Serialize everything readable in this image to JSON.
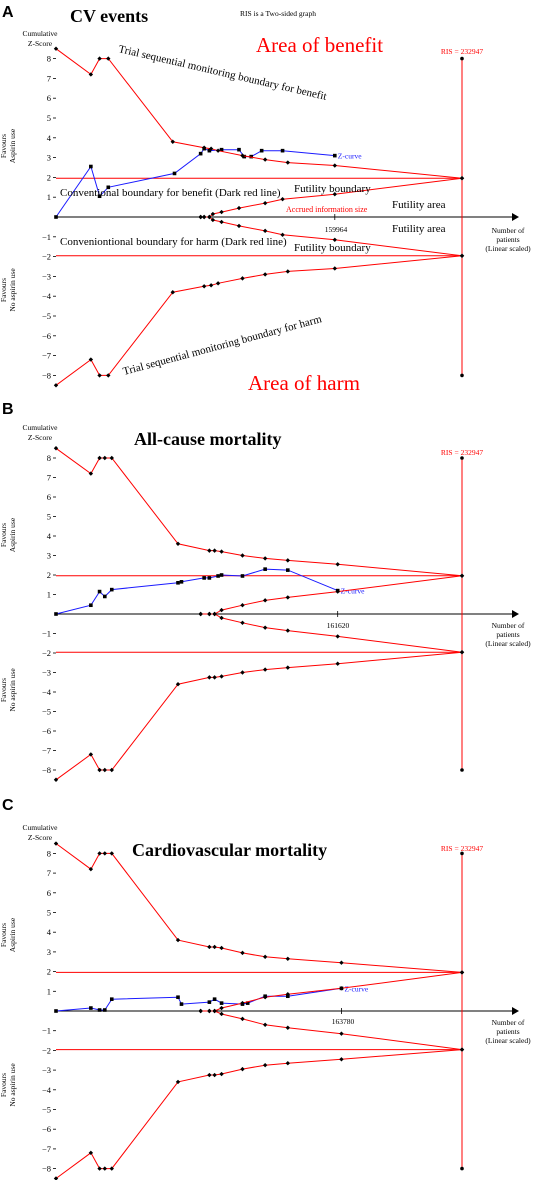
{
  "colors": {
    "boundary": "#ff0000",
    "zcurve": "#1a1aff",
    "axis": "#000000"
  },
  "panels": [
    {
      "letter": "A",
      "title": "CV events",
      "note": "RIS is a Two-sided graph",
      "y_title": [
        "Cumulative",
        "Z-Score"
      ],
      "favours_top": [
        "Favours",
        "Aspirin use"
      ],
      "favours_bottom": [
        "Favours",
        "No aspirin use"
      ],
      "x_title": [
        "Number of",
        "patients",
        "(Linear scaled)"
      ],
      "ris_label": "RIS = 232947",
      "x_tick": "159964",
      "zcurve_label": "Z-curve",
      "annotations": {
        "area_benefit": "Area of benefit",
        "area_harm": "Area of harm",
        "tsm_benefit": "Trial sequential monitoring boundary for benefit",
        "tsm_harm": "Trial sequential monitoring boundary for harm",
        "conv_benefit": "Conventional boundary for benefit (Dark red line)",
        "conv_harm": "Conveniontional boundary for harm (Dark red line)",
        "futility_boundary_top": "Futility boundary",
        "futility_boundary_bottom": "Futility boundary",
        "futility_area_top": "Futility area",
        "futility_area_bottom": "Futility area",
        "accrued": "Accrued information size"
      }
    },
    {
      "letter": "B",
      "title": "All-cause mortality",
      "y_title": [
        "Cumulative",
        "Z-Score"
      ],
      "favours_top": [
        "Favours",
        "Aspirin use"
      ],
      "favours_bottom": [
        "Favours",
        "No aspirin use"
      ],
      "x_title": [
        "Number of",
        "patients",
        "(Linear scaled)"
      ],
      "ris_label": "RIS = 232947",
      "x_tick": "161620",
      "zcurve_label": "Z-curve"
    },
    {
      "letter": "C",
      "title": "Cardiovascular mortality",
      "y_title": [
        "Cumulative",
        "Z-Score"
      ],
      "favours_top": [
        "Favours",
        "Aspirin use"
      ],
      "favours_bottom": [
        "Favours",
        "No aspirin use"
      ],
      "x_title": [
        "Number of",
        "patients",
        "(Linear scaled)"
      ],
      "ris_label": "RIS = 232947",
      "x_tick": "163780",
      "zcurve_label": "Z-curve"
    }
  ],
  "chart_data": [
    {
      "type": "line",
      "title": "CV events",
      "xlabel": "Number of patients (Linear scaled)",
      "ylabel": "Cumulative Z-Score",
      "ylim": [
        -8.5,
        8.5
      ],
      "xlim": [
        0,
        248000
      ],
      "yticks": [
        8,
        7,
        6,
        5,
        4,
        3,
        2,
        1,
        -1,
        -2,
        -3,
        -4,
        -5,
        -6,
        -7,
        -8
      ],
      "ris": 232947,
      "accrued": 159964,
      "series": [
        {
          "name": "Z-curve",
          "points": [
            [
              0,
              0
            ],
            [
              20000,
              2.55
            ],
            [
              25000,
              1.05
            ],
            [
              30000,
              1.5
            ],
            [
              68000,
              2.2
            ],
            [
              83000,
              3.2
            ],
            [
              85000,
              3.45
            ],
            [
              88000,
              3.35
            ],
            [
              95000,
              3.4
            ],
            [
              105000,
              3.4
            ],
            [
              108000,
              3.05
            ],
            [
              112000,
              3.05
            ],
            [
              118000,
              3.35
            ],
            [
              130000,
              3.35
            ],
            [
              159964,
              3.1
            ]
          ]
        },
        {
          "name": "Trial sequential monitoring boundary for benefit",
          "points": [
            [
              0,
              8.5
            ],
            [
              20000,
              7.2
            ],
            [
              25000,
              8.0
            ],
            [
              30000,
              8.0
            ],
            [
              67000,
              3.8
            ],
            [
              85000,
              3.5
            ],
            [
              89000,
              3.45
            ],
            [
              93000,
              3.35
            ],
            [
              107000,
              3.1
            ],
            [
              120000,
              2.9
            ],
            [
              133000,
              2.75
            ],
            [
              159964,
              2.6
            ],
            [
              232947,
              1.96
            ]
          ]
        },
        {
          "name": "Trial sequential monitoring boundary for harm",
          "points": [
            [
              0,
              -8.5
            ],
            [
              20000,
              -7.2
            ],
            [
              25000,
              -8.0
            ],
            [
              30000,
              -8.0
            ],
            [
              67000,
              -3.8
            ],
            [
              85000,
              -3.5
            ],
            [
              89000,
              -3.45
            ],
            [
              93000,
              -3.35
            ],
            [
              107000,
              -3.1
            ],
            [
              120000,
              -2.9
            ],
            [
              133000,
              -2.75
            ],
            [
              159964,
              -2.6
            ],
            [
              232947,
              -1.96
            ]
          ]
        },
        {
          "name": "Futility boundary",
          "points": [
            [
              83000,
              0
            ],
            [
              85000,
              0
            ],
            [
              88000,
              0
            ],
            [
              90000,
              0.15
            ],
            [
              95000,
              0.25
            ],
            [
              105000,
              0.45
            ],
            [
              120000,
              0.7
            ],
            [
              130000,
              0.9
            ],
            [
              159964,
              1.15
            ],
            [
              232947,
              1.96
            ]
          ]
        },
        {
          "name": "Futility boundary",
          "points": [
            [
              83000,
              0
            ],
            [
              85000,
              0
            ],
            [
              88000,
              0
            ],
            [
              90000,
              -0.15
            ],
            [
              95000,
              -0.25
            ],
            [
              105000,
              -0.45
            ],
            [
              120000,
              -0.7
            ],
            [
              130000,
              -0.9
            ],
            [
              159964,
              -1.15
            ],
            [
              232947,
              -1.96
            ]
          ]
        }
      ],
      "conventional_boundaries": [
        1.96,
        -1.96
      ]
    },
    {
      "type": "line",
      "title": "All-cause mortality",
      "xlabel": "Number of patients (Linear scaled)",
      "ylabel": "Cumulative Z-Score",
      "ylim": [
        -8.5,
        8.5
      ],
      "xlim": [
        0,
        248000
      ],
      "yticks": [
        8,
        7,
        6,
        5,
        4,
        3,
        2,
        1,
        -1,
        -2,
        -3,
        -4,
        -5,
        -6,
        -7,
        -8
      ],
      "ris": 232947,
      "accrued": 161620,
      "series": [
        {
          "name": "Z-curve",
          "points": [
            [
              0,
              0
            ],
            [
              20000,
              0.45
            ],
            [
              25000,
              1.15
            ],
            [
              28000,
              0.9
            ],
            [
              32000,
              1.25
            ],
            [
              70000,
              1.6
            ],
            [
              72000,
              1.65
            ],
            [
              85000,
              1.85
            ],
            [
              88000,
              1.85
            ],
            [
              93000,
              1.95
            ],
            [
              95000,
              2.0
            ],
            [
              107000,
              1.95
            ],
            [
              120000,
              2.3
            ],
            [
              133000,
              2.25
            ],
            [
              161620,
              1.2
            ]
          ]
        },
        {
          "name": "Trial sequential monitoring boundary for benefit",
          "points": [
            [
              0,
              8.5
            ],
            [
              20000,
              7.2
            ],
            [
              25000,
              8.0
            ],
            [
              28000,
              8.0
            ],
            [
              32000,
              8.0
            ],
            [
              70000,
              3.6
            ],
            [
              88000,
              3.25
            ],
            [
              91000,
              3.25
            ],
            [
              95000,
              3.2
            ],
            [
              107000,
              3.0
            ],
            [
              120000,
              2.85
            ],
            [
              133000,
              2.75
            ],
            [
              161620,
              2.55
            ],
            [
              232947,
              1.96
            ]
          ]
        },
        {
          "name": "Trial sequential monitoring boundary for harm",
          "points": [
            [
              0,
              -8.5
            ],
            [
              20000,
              -7.2
            ],
            [
              25000,
              -8.0
            ],
            [
              28000,
              -8.0
            ],
            [
              32000,
              -8.0
            ],
            [
              70000,
              -3.6
            ],
            [
              88000,
              -3.25
            ],
            [
              91000,
              -3.25
            ],
            [
              95000,
              -3.2
            ],
            [
              107000,
              -3.0
            ],
            [
              120000,
              -2.85
            ],
            [
              133000,
              -2.75
            ],
            [
              161620,
              -2.55
            ],
            [
              232947,
              -1.96
            ]
          ]
        },
        {
          "name": "Futility boundary",
          "points": [
            [
              83000,
              0
            ],
            [
              88000,
              0
            ],
            [
              91000,
              0
            ],
            [
              95000,
              0.2
            ],
            [
              107000,
              0.45
            ],
            [
              120000,
              0.7
            ],
            [
              133000,
              0.85
            ],
            [
              161620,
              1.15
            ],
            [
              232947,
              1.96
            ]
          ]
        },
        {
          "name": "Futility boundary",
          "points": [
            [
              83000,
              0
            ],
            [
              88000,
              0
            ],
            [
              91000,
              0
            ],
            [
              95000,
              -0.2
            ],
            [
              107000,
              -0.45
            ],
            [
              120000,
              -0.7
            ],
            [
              133000,
              -0.85
            ],
            [
              161620,
              -1.15
            ],
            [
              232947,
              -1.96
            ]
          ]
        }
      ],
      "conventional_boundaries": [
        1.96,
        -1.96
      ]
    },
    {
      "type": "line",
      "title": "Cardiovascular mortality",
      "xlabel": "Number of patients (Linear scaled)",
      "ylabel": "Cumulative Z-Score",
      "ylim": [
        -8.5,
        8.5
      ],
      "xlim": [
        0,
        248000
      ],
      "yticks": [
        8,
        7,
        6,
        5,
        4,
        3,
        2,
        1,
        -1,
        -2,
        -3,
        -4,
        -5,
        -6,
        -7,
        -8
      ],
      "ris": 232947,
      "accrued": 163780,
      "series": [
        {
          "name": "Z-curve",
          "points": [
            [
              0,
              0
            ],
            [
              20000,
              0.15
            ],
            [
              25000,
              0.05
            ],
            [
              28000,
              0.05
            ],
            [
              32000,
              0.6
            ],
            [
              70000,
              0.7
            ],
            [
              72000,
              0.35
            ],
            [
              88000,
              0.45
            ],
            [
              91000,
              0.6
            ],
            [
              95000,
              0.4
            ],
            [
              107000,
              0.35
            ],
            [
              110000,
              0.4
            ],
            [
              120000,
              0.75
            ],
            [
              133000,
              0.75
            ],
            [
              163780,
              1.15
            ]
          ]
        },
        {
          "name": "Trial sequential monitoring boundary for benefit",
          "points": [
            [
              0,
              8.5
            ],
            [
              20000,
              7.2
            ],
            [
              25000,
              8.0
            ],
            [
              28000,
              8.0
            ],
            [
              32000,
              8.0
            ],
            [
              70000,
              3.6
            ],
            [
              88000,
              3.25
            ],
            [
              91000,
              3.25
            ],
            [
              95000,
              3.2
            ],
            [
              107000,
              2.95
            ],
            [
              120000,
              2.75
            ],
            [
              133000,
              2.65
            ],
            [
              163780,
              2.45
            ],
            [
              232947,
              1.96
            ]
          ]
        },
        {
          "name": "Trial sequential monitoring boundary for harm",
          "points": [
            [
              0,
              -8.5
            ],
            [
              20000,
              -7.2
            ],
            [
              25000,
              -8.0
            ],
            [
              28000,
              -8.0
            ],
            [
              32000,
              -8.0
            ],
            [
              70000,
              -3.6
            ],
            [
              88000,
              -3.25
            ],
            [
              91000,
              -3.25
            ],
            [
              95000,
              -3.2
            ],
            [
              107000,
              -2.95
            ],
            [
              120000,
              -2.75
            ],
            [
              133000,
              -2.65
            ],
            [
              163780,
              -2.45
            ],
            [
              232947,
              -1.96
            ]
          ]
        },
        {
          "name": "Futility boundary",
          "points": [
            [
              83000,
              0
            ],
            [
              88000,
              0
            ],
            [
              91000,
              0
            ],
            [
              95000,
              0.15
            ],
            [
              107000,
              0.4
            ],
            [
              120000,
              0.7
            ],
            [
              133000,
              0.85
            ],
            [
              163780,
              1.15
            ],
            [
              232947,
              1.96
            ]
          ]
        },
        {
          "name": "Futility boundary",
          "points": [
            [
              83000,
              0
            ],
            [
              88000,
              0
            ],
            [
              91000,
              0
            ],
            [
              95000,
              -0.15
            ],
            [
              107000,
              -0.4
            ],
            [
              120000,
              -0.7
            ],
            [
              133000,
              -0.85
            ],
            [
              163780,
              -1.15
            ],
            [
              232947,
              -1.96
            ]
          ]
        }
      ],
      "conventional_boundaries": [
        1.96,
        -1.96
      ]
    }
  ]
}
